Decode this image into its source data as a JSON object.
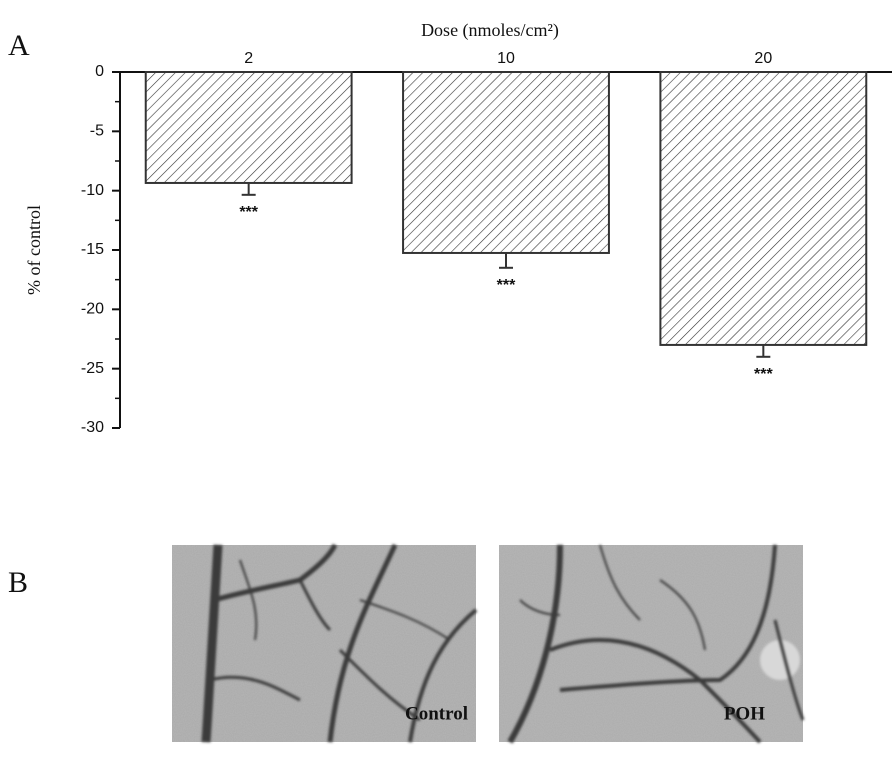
{
  "chart_data": {
    "type": "bar",
    "x_label": "Dose (nmoles/cm²)",
    "y_label": "% of control",
    "categories": [
      "2",
      "10",
      "20"
    ],
    "values": [
      -9.35,
      -15.25,
      -23.0
    ],
    "errors": [
      1.0,
      1.25,
      1.0
    ],
    "significance": [
      "***",
      "***",
      "***"
    ],
    "ylim": [
      -30,
      0
    ],
    "yticks": [
      0,
      -5,
      -10,
      -15,
      -20,
      -25,
      -30
    ],
    "yminorticks": [
      -2.5,
      -7.5,
      -12.5,
      -17.5,
      -22.5,
      -27.5
    ],
    "color": "#333333"
  },
  "panels": [
    "A",
    "B"
  ],
  "images": [
    {
      "label": "Control"
    },
    {
      "label": "POH"
    }
  ]
}
